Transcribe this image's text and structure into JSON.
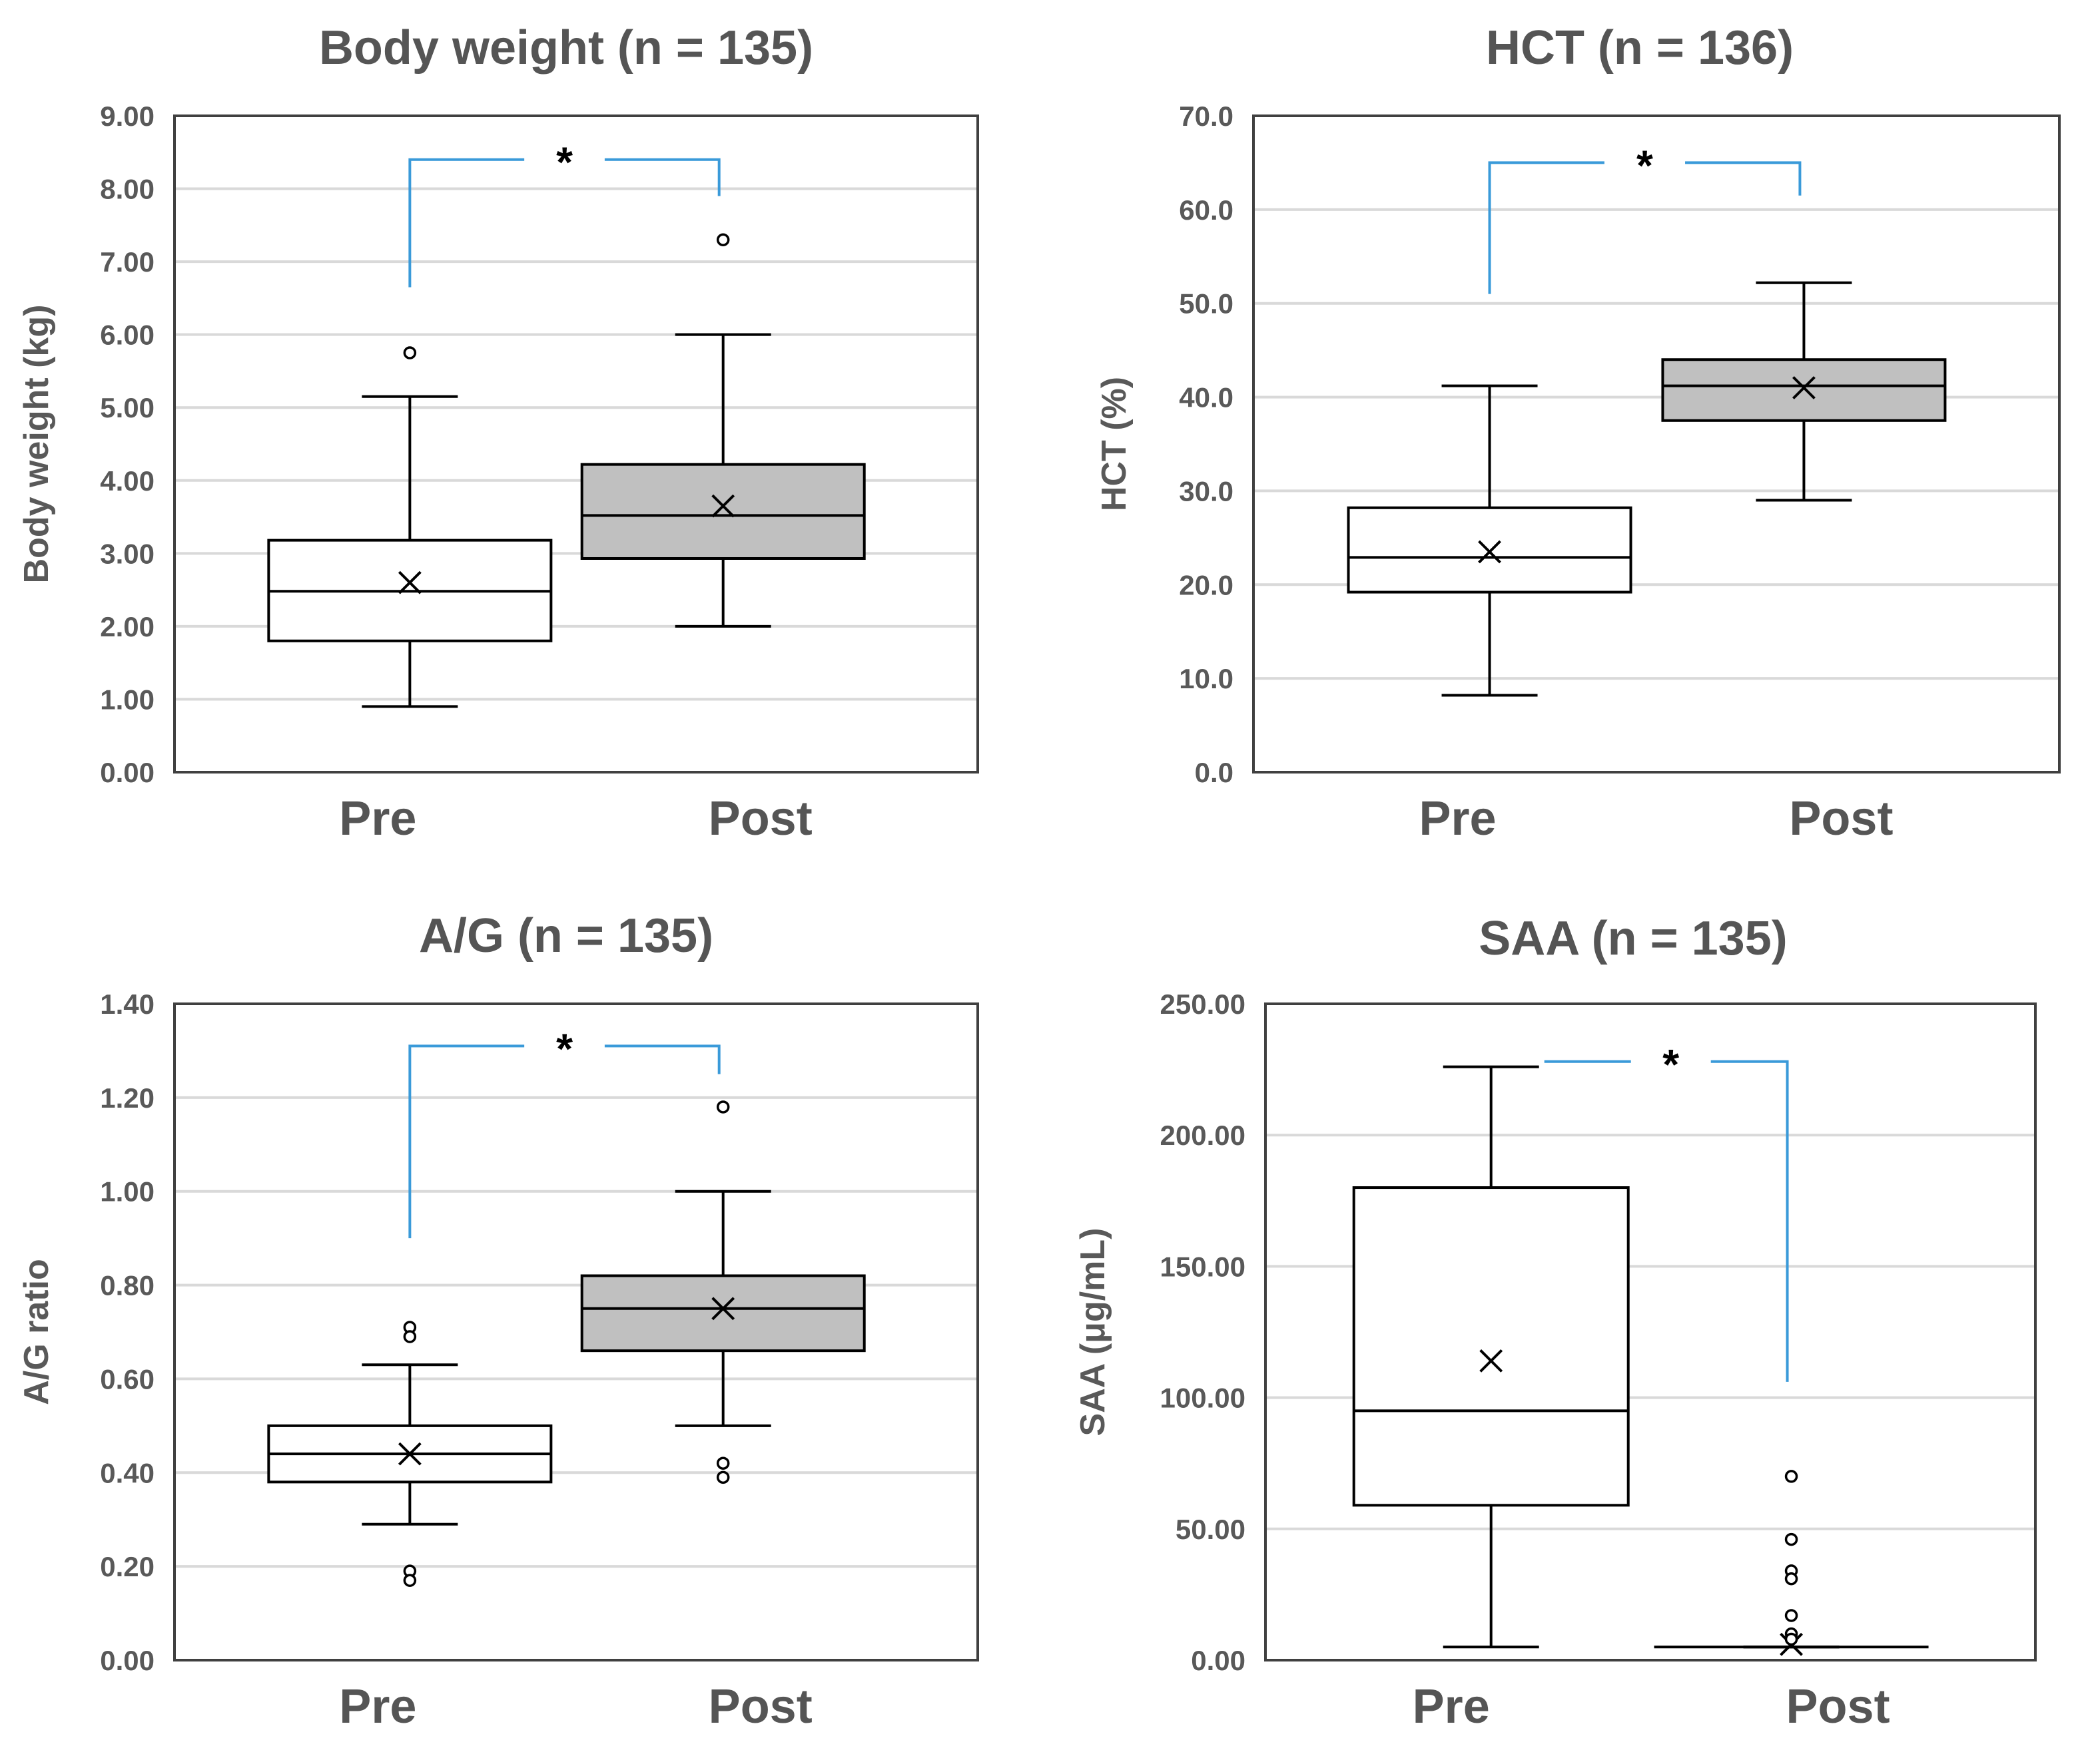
{
  "figure_title": "",
  "chart_data": [
    {
      "type": "box",
      "title": "Body weight (n = 135)",
      "xlabel": "",
      "ylabel": "Body weight (kg)",
      "ylim": [
        0,
        9
      ],
      "yticks": [
        0,
        1,
        2,
        3,
        4,
        5,
        6,
        7,
        8,
        9
      ],
      "ytick_labels": [
        "0.00",
        "1.00",
        "2.00",
        "3.00",
        "4.00",
        "5.00",
        "6.00",
        "7.00",
        "8.00",
        "9.00"
      ],
      "categories": [
        "Pre",
        "Post"
      ],
      "boxes": [
        {
          "label": "Pre",
          "fill": "#ffffff",
          "min": 0.9,
          "q1": 1.8,
          "median": 2.48,
          "q3": 3.18,
          "max": 5.15,
          "mean": 2.6,
          "outliers": [
            5.75
          ]
        },
        {
          "label": "Post",
          "fill": "#c0c0c0",
          "min": 2.0,
          "q1": 2.93,
          "median": 3.52,
          "q3": 4.22,
          "max": 6.0,
          "mean": 3.65,
          "outliers": [
            7.3
          ]
        }
      ],
      "significance": {
        "from": "Pre",
        "to": "Post",
        "label": "*",
        "bracket_y": 8.4,
        "left_drop_to": 6.65,
        "right_drop_to": 7.9
      }
    },
    {
      "type": "box",
      "title": "HCT (n = 136)",
      "xlabel": "",
      "ylabel": "HCT (%)",
      "ylim": [
        0,
        70
      ],
      "yticks": [
        0,
        10,
        20,
        30,
        40,
        50,
        60,
        70
      ],
      "ytick_labels": [
        "0.0",
        "10.0",
        "20.0",
        "30.0",
        "40.0",
        "50.0",
        "60.0",
        "70.0"
      ],
      "categories": [
        "Pre",
        "Post"
      ],
      "boxes": [
        {
          "label": "Pre",
          "fill": "#ffffff",
          "min": 8.2,
          "q1": 19.2,
          "median": 22.9,
          "q3": 28.2,
          "max": 41.2,
          "mean": 23.5,
          "outliers": []
        },
        {
          "label": "Post",
          "fill": "#c0c0c0",
          "min": 29.0,
          "q1": 37.5,
          "median": 41.2,
          "q3": 44.0,
          "max": 52.2,
          "mean": 41.0,
          "outliers": []
        }
      ],
      "significance": {
        "from": "Pre",
        "to": "Post",
        "label": "*",
        "bracket_y": 65.0,
        "left_drop_to": 51.0,
        "right_drop_to": 61.5
      }
    },
    {
      "type": "box",
      "title": "A/G (n = 135)",
      "xlabel": "",
      "ylabel": "A/G ratio",
      "ylim": [
        0,
        1.4
      ],
      "yticks": [
        0,
        0.2,
        0.4,
        0.6,
        0.8,
        1.0,
        1.2,
        1.4
      ],
      "ytick_labels": [
        "0.00",
        "0.20",
        "0.40",
        "0.60",
        "0.80",
        "1.00",
        "1.20",
        "1.40"
      ],
      "categories": [
        "Pre",
        "Post"
      ],
      "boxes": [
        {
          "label": "Pre",
          "fill": "#ffffff",
          "min": 0.29,
          "q1": 0.38,
          "median": 0.44,
          "q3": 0.5,
          "max": 0.63,
          "mean": 0.44,
          "outliers": [
            0.71,
            0.69,
            0.19,
            0.17
          ]
        },
        {
          "label": "Post",
          "fill": "#c0c0c0",
          "min": 0.5,
          "q1": 0.66,
          "median": 0.75,
          "q3": 0.82,
          "max": 1.0,
          "mean": 0.75,
          "outliers": [
            1.18,
            0.42,
            0.39
          ]
        }
      ],
      "significance": {
        "from": "Pre",
        "to": "Post",
        "label": "*",
        "bracket_y": 1.31,
        "left_drop_to": 0.9,
        "right_drop_to": 1.25
      }
    },
    {
      "type": "box",
      "title": "SAA (n = 135)",
      "xlabel": "",
      "ylabel": "SAA (μg/mL)",
      "ylim": [
        0,
        250
      ],
      "yticks": [
        0,
        50,
        100,
        150,
        200,
        250
      ],
      "ytick_labels": [
        "0.00",
        "50.00",
        "100.00",
        "150.00",
        "200.00",
        "250.00"
      ],
      "categories": [
        "Pre",
        "Post"
      ],
      "boxes": [
        {
          "label": "Pre",
          "fill": "#ffffff",
          "min": 5.0,
          "q1": 59.0,
          "median": 95.0,
          "q3": 180.0,
          "max": 226.0,
          "mean": 114.0,
          "outliers": []
        },
        {
          "label": "Post",
          "fill": "#ffffff",
          "min": 5.0,
          "q1": 5.0,
          "median": 5.0,
          "q3": 5.0,
          "max": 5.0,
          "mean": 6.0,
          "outliers": [
            70,
            46,
            34,
            31,
            17,
            10,
            8
          ]
        }
      ],
      "significance": {
        "from": "Pre",
        "to": "Post",
        "label": "*",
        "bracket_y": 228.0,
        "left_drop_to": 228.0,
        "right_drop_to": 106.0
      }
    }
  ],
  "colors": {
    "bracket": "#3a9ad9",
    "axis": "#404040",
    "grid": "#d9d9d9",
    "box_line": "#000000"
  }
}
